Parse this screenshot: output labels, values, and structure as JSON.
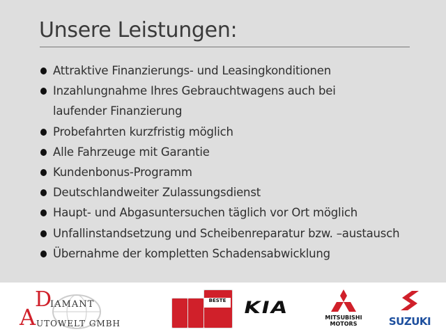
{
  "header": {
    "title": "Unsere Leistungen:"
  },
  "services": [
    {
      "lines": [
        "Attraktive Finanzierungs- und Leasingkonditionen"
      ]
    },
    {
      "lines": [
        "Inzahlungnahme Ihres Gebrauchtwagens auch bei",
        "laufender Finanzierung"
      ]
    },
    {
      "lines": [
        "Probefahrten kurzfristig möglich"
      ]
    },
    {
      "lines": [
        "Alle Fahrzeuge mit Garantie"
      ]
    },
    {
      "lines": [
        "Kundenbonus-Programm"
      ]
    },
    {
      "lines": [
        "Deutschlandweiter Zulassungsdienst"
      ]
    },
    {
      "lines": [
        "Haupt- und Abgasuntersuchen täglich vor Ort möglich"
      ]
    },
    {
      "lines": [
        "Unfallinstandsetzung und Scheibenreparatur bzw. –austausch"
      ]
    },
    {
      "lines": [
        "Übernahme der kompletten Schadensabwicklung"
      ]
    }
  ],
  "footer": {
    "dealer": {
      "line1_initial": "D",
      "line1_rest": "IAMANT",
      "line2_initial": "A",
      "line2_rest": "UTOWELT GMBH"
    },
    "badge": {
      "label": "BESTE"
    },
    "brands": {
      "kia": "KIA",
      "mitsubishi_1": "MITSUBISHI",
      "mitsubishi_2": "MOTORS",
      "suzuki": "SUZUKI"
    },
    "colors": {
      "background": "#dedede",
      "text": "#333333",
      "red": "#d0202a",
      "suzuki_blue": "#1d4f9e",
      "kia": "#111111"
    }
  }
}
